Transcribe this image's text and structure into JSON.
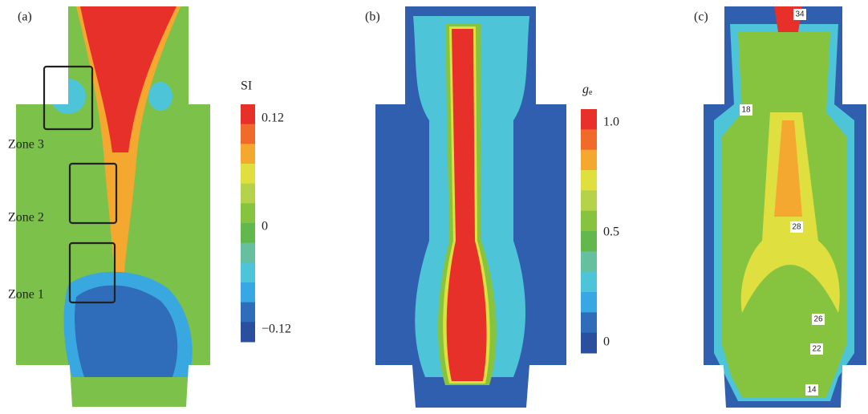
{
  "panels": [
    {
      "label": "(a)",
      "zones": [
        "Zone 3",
        "Zone 2",
        "Zone 1"
      ],
      "colorbar": {
        "title": "SI",
        "ticks": [
          "0.12",
          "0",
          "−0.12"
        ]
      }
    },
    {
      "label": "(b)",
      "colorbar": {
        "title": {
          "symbol": "g",
          "subscript": "e"
        },
        "ticks": [
          "1.0",
          "0.5",
          "0"
        ]
      }
    },
    {
      "label": "(c)",
      "contour_labels": [
        "34",
        "18",
        "28",
        "26",
        "22",
        "14"
      ]
    }
  ],
  "colorbar_colors": [
    "#e8302a",
    "#f06a2a",
    "#f5a830",
    "#dfe040",
    "#b4d24a",
    "#86c440",
    "#62b84c",
    "#66c0a0",
    "#4ec4d8",
    "#38a8e4",
    "#2f6cba",
    "#2a4f9e"
  ]
}
